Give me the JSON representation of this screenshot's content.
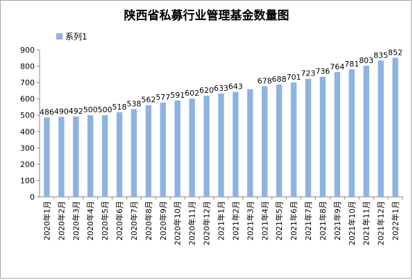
{
  "chart_data": {
    "type": "bar",
    "title": "陕西省私募行业管理基金数量图",
    "xlabel": "",
    "ylabel": "",
    "ylim": [
      0,
      900
    ],
    "yticks": [
      0,
      100,
      200,
      300,
      400,
      500,
      600,
      700,
      800,
      900
    ],
    "grid": false,
    "legend": "top-left",
    "bar_color": "#8db3e2",
    "categories": [
      "2020年1月",
      "2020年2月",
      "2020年3月",
      "2020年4月",
      "2020年5月",
      "2020年6月",
      "2020年7月",
      "2020年8月",
      "2020年9月",
      "2020年10月",
      "2020年11月",
      "2020年12月",
      "2021年1月",
      "2021年2月",
      "2021年3月",
      "2021年4月",
      "2021年5月",
      "2021年6月",
      "2021年7月",
      "2021年8月",
      "2021年9月",
      "2021年10月",
      "2021年11月",
      "2021年12月",
      "2022年1月"
    ],
    "series": [
      {
        "name": "系列1",
        "values": [
          486,
          490,
          492,
          500,
          500,
          518,
          538,
          562,
          577,
          591,
          602,
          620,
          633,
          643,
          659,
          678,
          688,
          701,
          723,
          736,
          764,
          781,
          803,
          835,
          852
        ],
        "labels": [
          "486",
          "490",
          "492",
          "500",
          "500",
          "518",
          "538",
          "562",
          "577",
          "591",
          "602",
          "620",
          "633",
          "643",
          "",
          "678",
          "688",
          "701",
          "723",
          "736",
          "764",
          "781",
          "803",
          "835",
          "852"
        ]
      }
    ]
  }
}
